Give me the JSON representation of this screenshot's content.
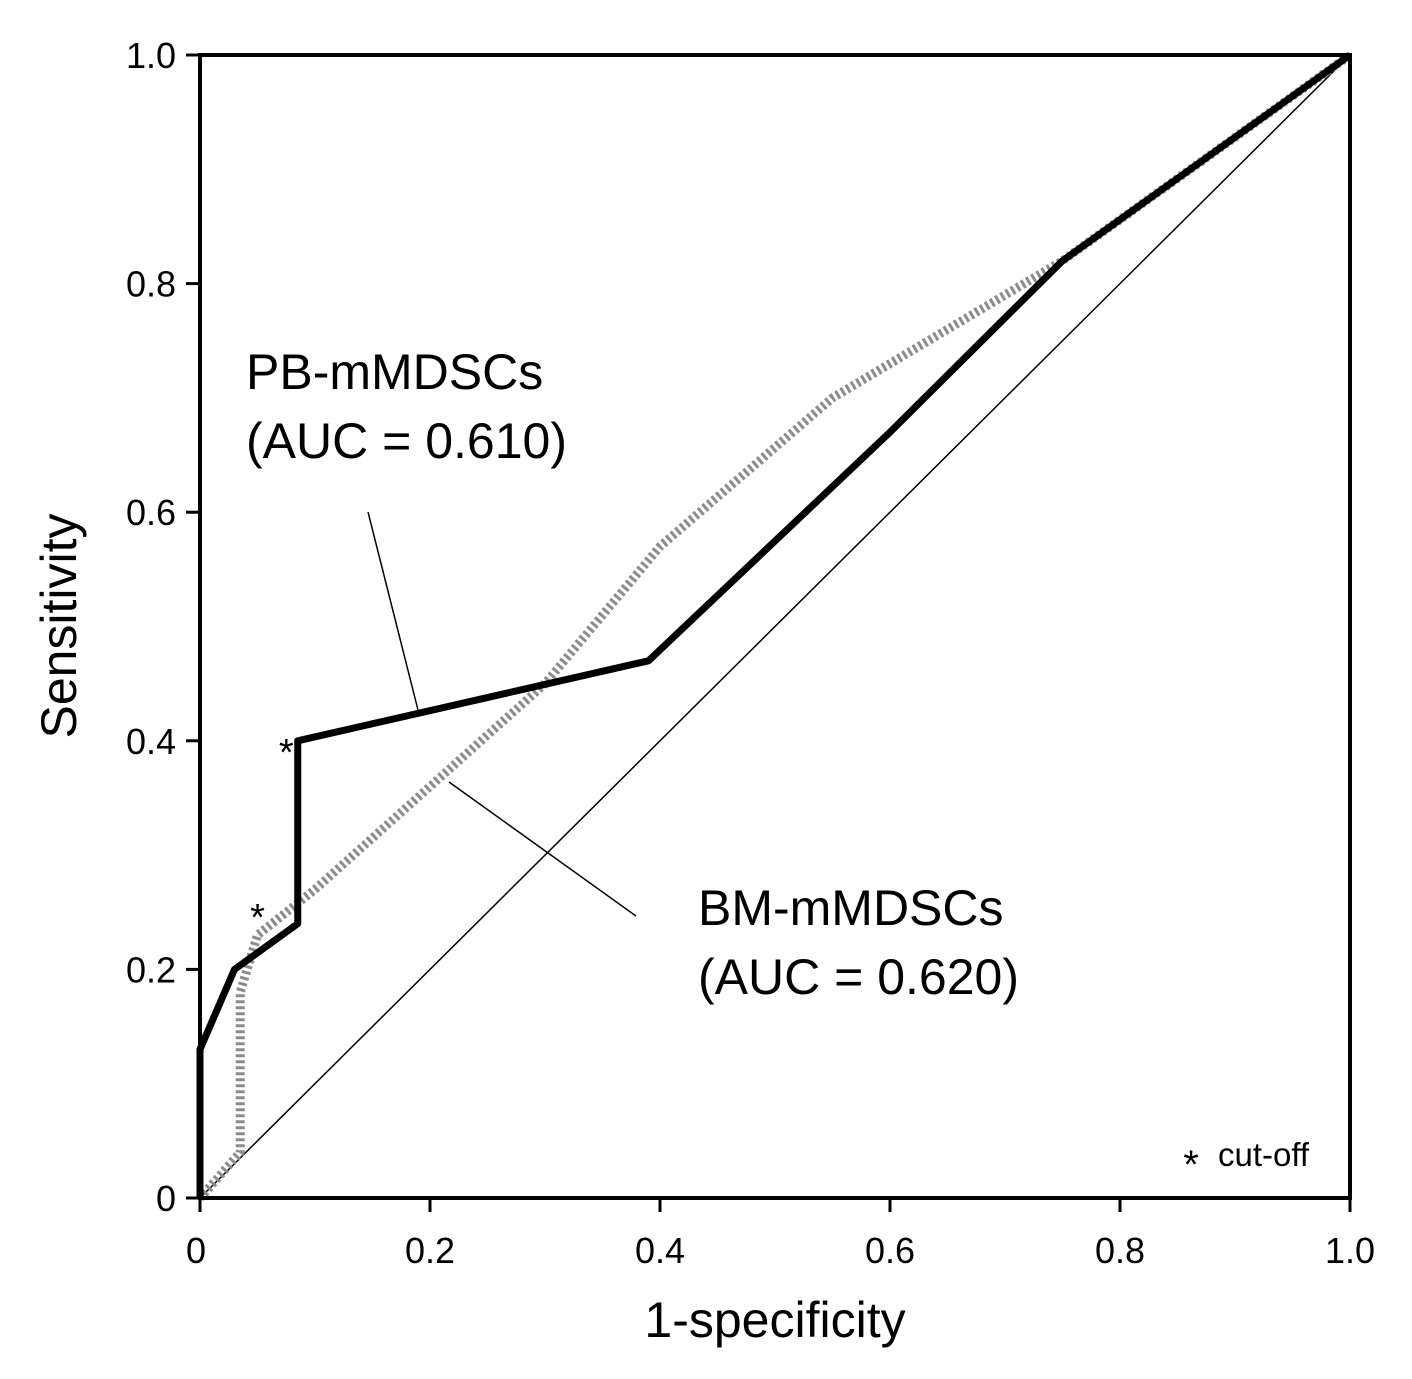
{
  "chart_data": {
    "type": "line",
    "title": "",
    "xlabel": "1-specificity",
    "ylabel": "Sensitivity",
    "xlim": [
      0,
      1
    ],
    "ylim": [
      0,
      1
    ],
    "x_ticks": [
      0,
      0.2,
      0.4,
      0.6,
      0.8,
      1.0
    ],
    "x_tick_labels": [
      "0",
      "0.2",
      "0.4",
      "0.6",
      "0.8",
      "1.0"
    ],
    "y_ticks": [
      0,
      0.2,
      0.4,
      0.6,
      0.8,
      1.0
    ],
    "y_tick_labels": [
      "0",
      "0.2",
      "0.4",
      "0.6",
      "0.8",
      "1.0"
    ],
    "grid": false,
    "series": [
      {
        "name": "PB-mMDSCs",
        "auc_label": "(AUC = 0.610)",
        "style": "solid",
        "color": "#000000",
        "x": [
          0,
          0,
          0.03,
          0.085,
          0.085,
          0.39,
          0.6,
          0.75,
          1.0
        ],
        "y": [
          0,
          0.13,
          0.2,
          0.24,
          0.4,
          0.47,
          0.67,
          0.82,
          1.0
        ],
        "cutoff": {
          "x": 0.075,
          "y": 0.4
        }
      },
      {
        "name": "BM-mMDSCs",
        "auc_label": "(AUC = 0.620)",
        "style": "dotted",
        "color": "#8c8c8c",
        "x": [
          0,
          0.035,
          0.035,
          0.05,
          0.1,
          0.3,
          0.4,
          0.55,
          0.75,
          1.0
        ],
        "y": [
          0,
          0.04,
          0.18,
          0.23,
          0.27,
          0.45,
          0.57,
          0.7,
          0.82,
          1.0
        ],
        "cutoff": {
          "x": 0.05,
          "y": 0.245
        }
      },
      {
        "name": "reference",
        "style": "thin",
        "color": "#000000",
        "x": [
          0,
          1
        ],
        "y": [
          0,
          1
        ]
      }
    ],
    "annotations": [
      {
        "series": "PB-mMDSCs",
        "name_text": "PB-mMDSCs",
        "auc_text": "(AUC = 0.610)"
      },
      {
        "series": "BM-mMDSCs",
        "name_text": "BM-mMDSCs",
        "auc_text": "(AUC = 0.620)"
      }
    ],
    "legend": {
      "symbol": "*",
      "text": "cut-off",
      "placement": "bottom-right"
    }
  }
}
